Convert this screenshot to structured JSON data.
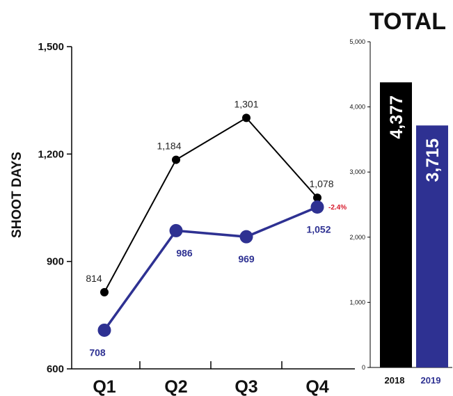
{
  "chart_data": [
    {
      "type": "line",
      "categories": [
        "Q1",
        "Q2",
        "Q3",
        "Q4"
      ],
      "ylabel": "SHOOT DAYS",
      "ylim": [
        600,
        1500
      ],
      "yticks": [
        "600",
        "900",
        "1,200",
        "1,500"
      ],
      "grid": false,
      "series": [
        {
          "values": [
            814,
            1184,
            1301,
            1078
          ],
          "labels": [
            "814",
            "1,184",
            "1,301",
            "1,078"
          ],
          "color": "#000000"
        },
        {
          "values": [
            708,
            986,
            969,
            1052
          ],
          "labels": [
            "708",
            "986",
            "969",
            "1,052"
          ],
          "color": "#2e3192"
        }
      ],
      "annotations": [
        {
          "text": "-2.4%",
          "color": "#d7182a"
        }
      ]
    },
    {
      "type": "bar",
      "title": "TOTAL",
      "categories": [
        "2018",
        "2019"
      ],
      "values": [
        4377,
        3715
      ],
      "value_labels": [
        "4,377",
        "3,715"
      ],
      "colors": [
        "#000000",
        "#2e3192"
      ],
      "ylim": [
        0,
        5000
      ],
      "yticks": [
        "0",
        "1,000",
        "2,000",
        "3,000",
        "4,000",
        "5,000"
      ],
      "grid": false
    }
  ]
}
